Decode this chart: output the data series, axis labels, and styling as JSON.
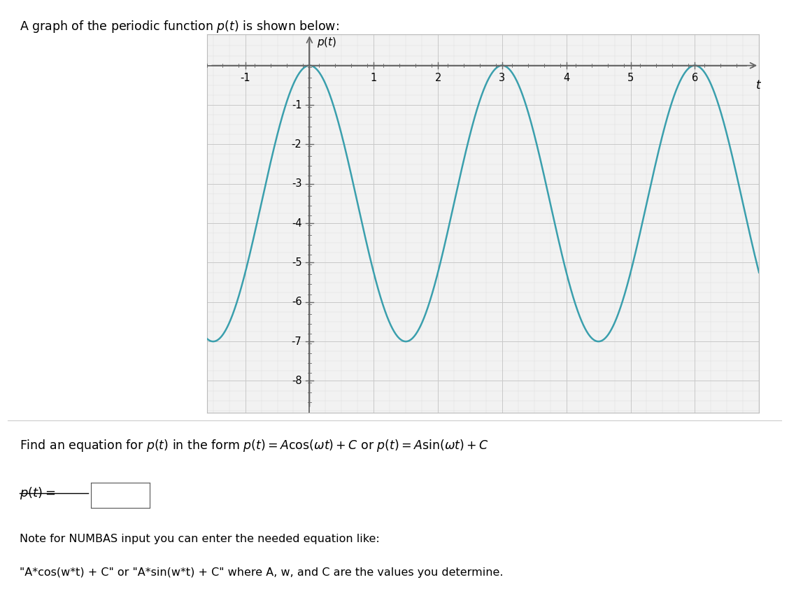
{
  "title_text": "A graph of the periodic function $p(t)$ is shown below:",
  "xlabel": "t",
  "ylabel": "$p(t)$",
  "xlim": [
    -1.6,
    7.0
  ],
  "ylim": [
    -8.8,
    0.8
  ],
  "xticks": [
    -1,
    1,
    2,
    3,
    4,
    5,
    6
  ],
  "yticks": [
    -1,
    -2,
    -3,
    -4,
    -5,
    -6,
    -7,
    -8
  ],
  "amplitude": 3.5,
  "vertical_shift": -3.5,
  "omega": 2.0943951023931953,
  "t_start": -1.6,
  "t_end": 7.0,
  "curve_color": "#3a9fad",
  "curve_lw": 1.8,
  "grid_color": "#c8c8c8",
  "grid_lw": 0.7,
  "ax_color": "#666666",
  "plot_bg_color": "#f2f2f2",
  "box_edge_color": "#bbbbbb",
  "minor_tick_count": 4,
  "find_eq_line1": "Find an equation for $p(t)$ in the form $p(t) = A\\cos(\\omega t) + C$ or $p(t) = A\\sin(\\omega t) + C$",
  "pt_equals": "$p(t) =$",
  "note_line": "Note for NUMBAS input you can enter the needed equation like:",
  "example_line": "\"A*cos(w*t) + C\" or \"A*sin(w*t) + C\" where A, w, and C are the values you determine."
}
